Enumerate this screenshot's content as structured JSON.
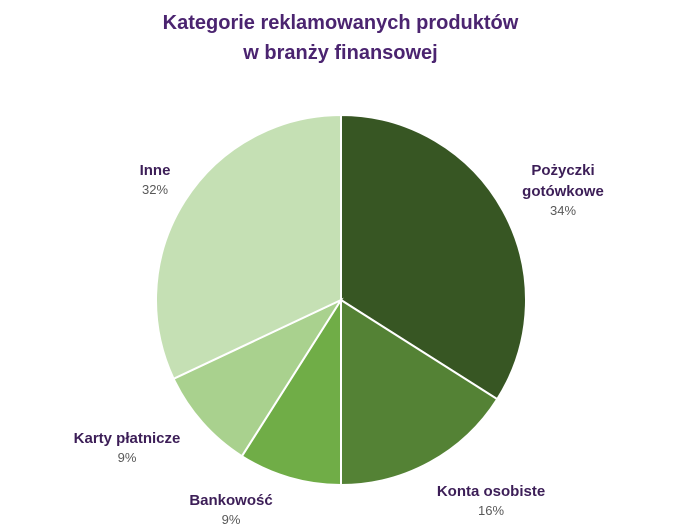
{
  "chart_data": {
    "type": "pie",
    "title": [
      "Kategorie reklamowanych produktów",
      "w branży finansowej"
    ],
    "categories": [
      "Pożyczki gotówkowe",
      "Konta osobiste",
      "Bankowość",
      "Karty płatnicze",
      "Inne"
    ],
    "values": [
      34,
      16,
      9,
      9,
      32
    ],
    "value_labels": [
      "34%",
      "16%",
      "9%",
      "9%",
      "32%"
    ],
    "colors": [
      "#375623",
      "#548235",
      "#70ad47",
      "#a9d18e",
      "#c5e0b4"
    ]
  }
}
